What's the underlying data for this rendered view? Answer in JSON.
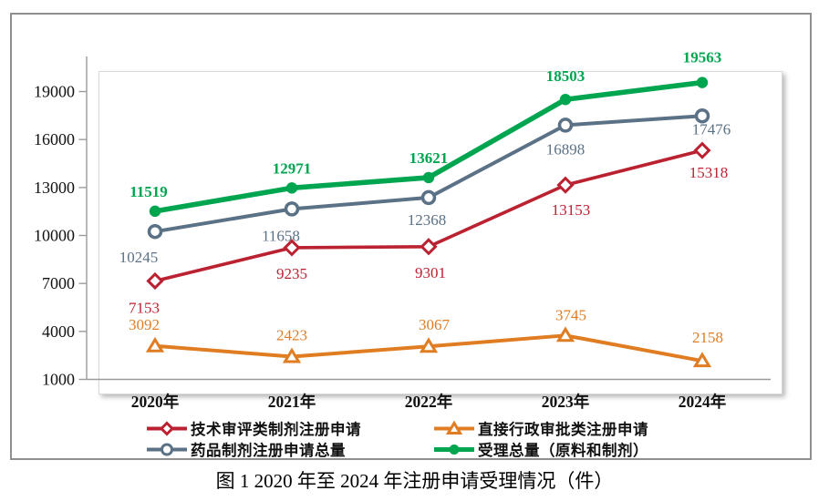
{
  "figure": {
    "caption": "图 1  2020 年至 2024 年注册申请受理情况（件）"
  },
  "chart_data": {
    "type": "line",
    "categories": [
      "2020年",
      "2021年",
      "2022年",
      "2023年",
      "2024年"
    ],
    "series": [
      {
        "name": "技术审评类制剂注册申请",
        "values": [
          7153,
          9235,
          9301,
          13153,
          15318
        ],
        "color": "#bb2231",
        "marker": "diamond-open"
      },
      {
        "name": "直接行政审批类注册申请",
        "values": [
          3092,
          2423,
          3067,
          3745,
          2158
        ],
        "color": "#e07d22",
        "marker": "triangle-open"
      },
      {
        "name": "药品制剂注册申请总量",
        "values": [
          10245,
          11658,
          12368,
          16898,
          17476
        ],
        "color": "#5b7186",
        "marker": "circle-open"
      },
      {
        "name": "受理总量（原料和制剂）",
        "values": [
          11519,
          12971,
          13621,
          18503,
          19563
        ],
        "color": "#00a550",
        "marker": "circle-filled"
      }
    ],
    "y_ticks": [
      1000,
      4000,
      7000,
      10000,
      13000,
      16000,
      19000
    ],
    "ylim": [
      1000,
      21200
    ],
    "grid": false,
    "legend_position": "bottom",
    "data_labels": true,
    "axis_color": "#9b9b9b"
  }
}
